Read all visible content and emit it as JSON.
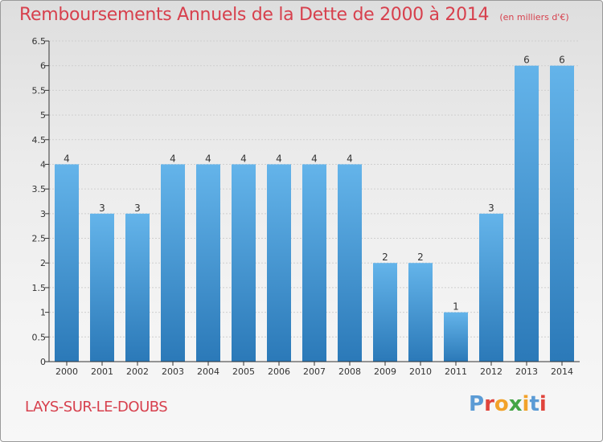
{
  "header": {
    "title": "Remboursements Annuels de la Dette de 2000 à 2014",
    "subtitle": "(en milliers d'€)"
  },
  "footer": {
    "place": "LAYS-SUR-LE-DOUBS",
    "logo_text": "Proxiti",
    "logo_colors": [
      "#5b9bd5",
      "#e0443c",
      "#f2a22a",
      "#44a546",
      "#f2a22a",
      "#5b9bd5",
      "#e0443c"
    ]
  },
  "colors": {
    "title": "#d7404d",
    "bar_light": "#64b4ea",
    "bar_dark": "#2b79b8",
    "axis": "#333333",
    "grid": "#cfcfcf"
  },
  "chart_data": {
    "type": "bar",
    "title": "Remboursements Annuels de la Dette de 2000 à 2014",
    "subtitle": "(en milliers d'€)",
    "categories": [
      "2000",
      "2001",
      "2002",
      "2003",
      "2004",
      "2005",
      "2006",
      "2007",
      "2008",
      "2009",
      "2010",
      "2011",
      "2012",
      "2013",
      "2014"
    ],
    "values": [
      4,
      3,
      3,
      4,
      4,
      4,
      4,
      4,
      4,
      2,
      2,
      1,
      3,
      6,
      6
    ],
    "data_labels": [
      "4",
      "3",
      "3",
      "4",
      "4",
      "4",
      "4",
      "4",
      "4",
      "2",
      "2",
      "1",
      "3",
      "6",
      "6"
    ],
    "y_ticks": [
      "0",
      "0.5",
      "1",
      "1.5",
      "2",
      "2.5",
      "3",
      "3.5",
      "4",
      "4.5",
      "5",
      "5.5",
      "6",
      "6.5"
    ],
    "ylim": [
      0,
      6.5
    ],
    "xlabel": "",
    "ylabel": "",
    "grid": true
  }
}
